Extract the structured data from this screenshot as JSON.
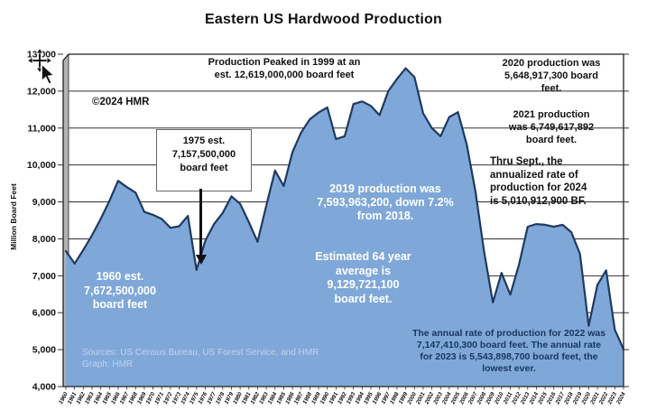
{
  "chart_data": {
    "type": "area",
    "title": "Eastern US Hardwood Production",
    "xlabel": "",
    "ylabel": "Million Board Feet",
    "ylim": [
      4000,
      13000
    ],
    "ytick_step": 1000,
    "grid": "horizontal",
    "legend": "none",
    "x": [
      1960,
      1961,
      1962,
      1963,
      1964,
      1965,
      1966,
      1967,
      1968,
      1969,
      1970,
      1971,
      1972,
      1973,
      1974,
      1975,
      1976,
      1977,
      1978,
      1979,
      1980,
      1981,
      1982,
      1983,
      1984,
      1985,
      1986,
      1987,
      1988,
      1989,
      1990,
      1991,
      1992,
      1993,
      1994,
      1995,
      1996,
      1997,
      1998,
      1999,
      2000,
      2001,
      2002,
      2003,
      2004,
      2005,
      2006,
      2007,
      2008,
      2009,
      2010,
      2011,
      2012,
      2013,
      2014,
      2015,
      2016,
      2017,
      2018,
      2019,
      2020,
      2021,
      2022,
      2023,
      2024
    ],
    "series": [
      {
        "name": "Eastern US hardwood production (million board feet)",
        "values": [
          7672,
          7330,
          7700,
          8100,
          8540,
          9030,
          9570,
          9400,
          9250,
          8730,
          8650,
          8540,
          8300,
          8340,
          8620,
          7157,
          7950,
          8400,
          8700,
          9150,
          8950,
          8450,
          7920,
          8900,
          9850,
          9430,
          10350,
          10880,
          11240,
          11420,
          11560,
          10700,
          10780,
          11650,
          11720,
          11600,
          11350,
          12000,
          12330,
          12619,
          12380,
          11400,
          11000,
          10780,
          11300,
          11430,
          10560,
          9300,
          7650,
          6280,
          7080,
          6490,
          7300,
          8330,
          8400,
          8380,
          8330,
          8380,
          8183,
          7594,
          5649,
          6750,
          7147,
          5544,
          5011
        ]
      }
    ],
    "colors": {
      "area_fill": "#7FA8D9",
      "line": "#1F3A60",
      "gridline": "#333333",
      "wall": "#b3b3b3",
      "border": "#222222"
    }
  },
  "annotations": {
    "peaked": "Production Peaked in 1999 at an\nest. 12,619,000,000 board feet",
    "copyright": "©2024 HMR",
    "box1975": "1975 est.\n7,157,500,000\nboard feet",
    "label1960": "1960 est.\n7,672,500,000\nboard feet",
    "label2019": "2019 production was\n7,593,963,200, down 7.2%\nfrom 2018.",
    "label_avg": "Estimated 64 year\naverage is\n9,129,721,100\nboard feet.",
    "sources": "Sources: US Census Bureau, US Forest Service, and HMR\nGraph: HMR",
    "note2020": "2020 production was\n5,648,917,300 board\nfeet.",
    "note2021": "2021 production\nwas 6,749,617,892\nboard feet.",
    "note2024": "Thru Sept., the\nannualized rate of\nproduction for 2024\nis 5,010,912,900 BF.",
    "note2022_23": "The annual rate of production for 2022 was\n7,147,410,300 board feet. The annual rate\nfor 2023 is 5,543,898,700 board feet, the\nlowest ever."
  }
}
